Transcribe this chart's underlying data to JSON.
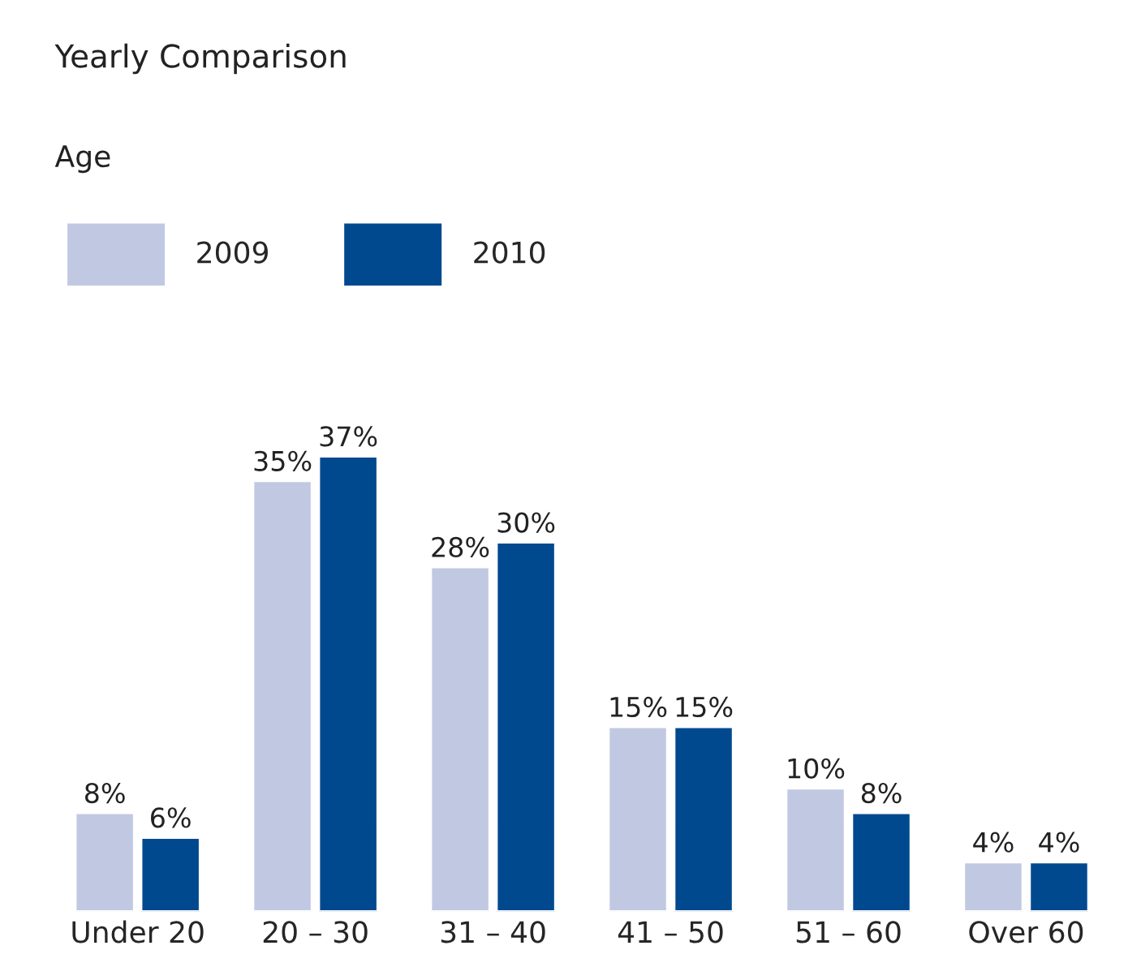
{
  "chart_data": {
    "type": "bar",
    "title": "Yearly Comparison",
    "subtitle": "Age",
    "categories": [
      "Under 20",
      "20 – 30",
      "31 – 40",
      "41 – 50",
      "51 – 60",
      "Over 60"
    ],
    "series": [
      {
        "name": "2009",
        "color": "#c1c9e2",
        "values": [
          8,
          35,
          28,
          15,
          10,
          4
        ],
        "value_labels": [
          "8%",
          "35%",
          "28%",
          "15%",
          "10%",
          "4%"
        ]
      },
      {
        "name": "2010",
        "color": "#00498f",
        "values": [
          6,
          37,
          30,
          15,
          8,
          4
        ],
        "value_labels": [
          "6%",
          "37%",
          "30%",
          "15%",
          "8%",
          "4%"
        ]
      }
    ],
    "legend": "top left",
    "grid": false
  }
}
